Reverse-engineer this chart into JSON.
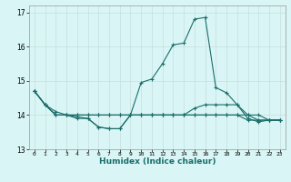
{
  "xlabel": "Humidex (Indice chaleur)",
  "xlim": [
    -0.5,
    23.5
  ],
  "ylim": [
    13.0,
    17.2
  ],
  "yticks": [
    13,
    14,
    15,
    16,
    17
  ],
  "xtick_positions": [
    0,
    1,
    2,
    3,
    4,
    5,
    6,
    7,
    8,
    9,
    10,
    11,
    12,
    13,
    14,
    15,
    16,
    17,
    18,
    19,
    20,
    21,
    22,
    23
  ],
  "xtick_labels": [
    "0",
    "1",
    "2",
    "3",
    "4",
    "5",
    "6",
    "7",
    "8",
    "9",
    "10",
    "11",
    "12",
    "13",
    "14",
    "15",
    "16",
    "17",
    "18",
    "19",
    "20",
    "21",
    "22",
    "23"
  ],
  "bg_color": "#d9f5f5",
  "grid_color": "#c8dede",
  "line_color": "#1a6e6a",
  "series": [
    [
      14.7,
      14.3,
      14.0,
      14.0,
      13.9,
      13.9,
      13.65,
      13.6,
      13.6,
      14.0,
      14.95,
      15.05,
      15.5,
      16.05,
      16.1,
      16.8,
      16.85,
      14.8,
      14.65,
      14.3,
      13.9,
      13.8,
      13.85,
      13.85
    ],
    [
      14.7,
      14.3,
      14.0,
      14.0,
      14.0,
      14.0,
      14.0,
      14.0,
      14.0,
      14.0,
      14.0,
      14.0,
      14.0,
      14.0,
      14.0,
      14.0,
      14.0,
      14.0,
      14.0,
      14.0,
      14.0,
      14.0,
      13.85,
      13.85
    ],
    [
      14.7,
      14.3,
      14.0,
      14.0,
      14.0,
      14.0,
      14.0,
      14.0,
      14.0,
      14.0,
      14.0,
      14.0,
      14.0,
      14.0,
      14.0,
      14.2,
      14.3,
      14.3,
      14.3,
      14.3,
      14.0,
      13.85,
      13.85,
      13.85
    ],
    [
      14.7,
      14.3,
      14.1,
      14.0,
      13.95,
      13.9,
      13.65,
      13.6,
      13.6,
      14.0,
      14.0,
      14.0,
      14.0,
      14.0,
      14.0,
      14.0,
      14.0,
      14.0,
      14.0,
      14.0,
      13.85,
      13.85,
      13.85,
      13.85
    ]
  ],
  "xlabel_fontsize": 6.5,
  "xlabel_color": "#1a6e6a",
  "ytick_fontsize": 5.5,
  "xtick_fontsize": 4.5,
  "linewidth": 0.8,
  "markersize": 2.5
}
